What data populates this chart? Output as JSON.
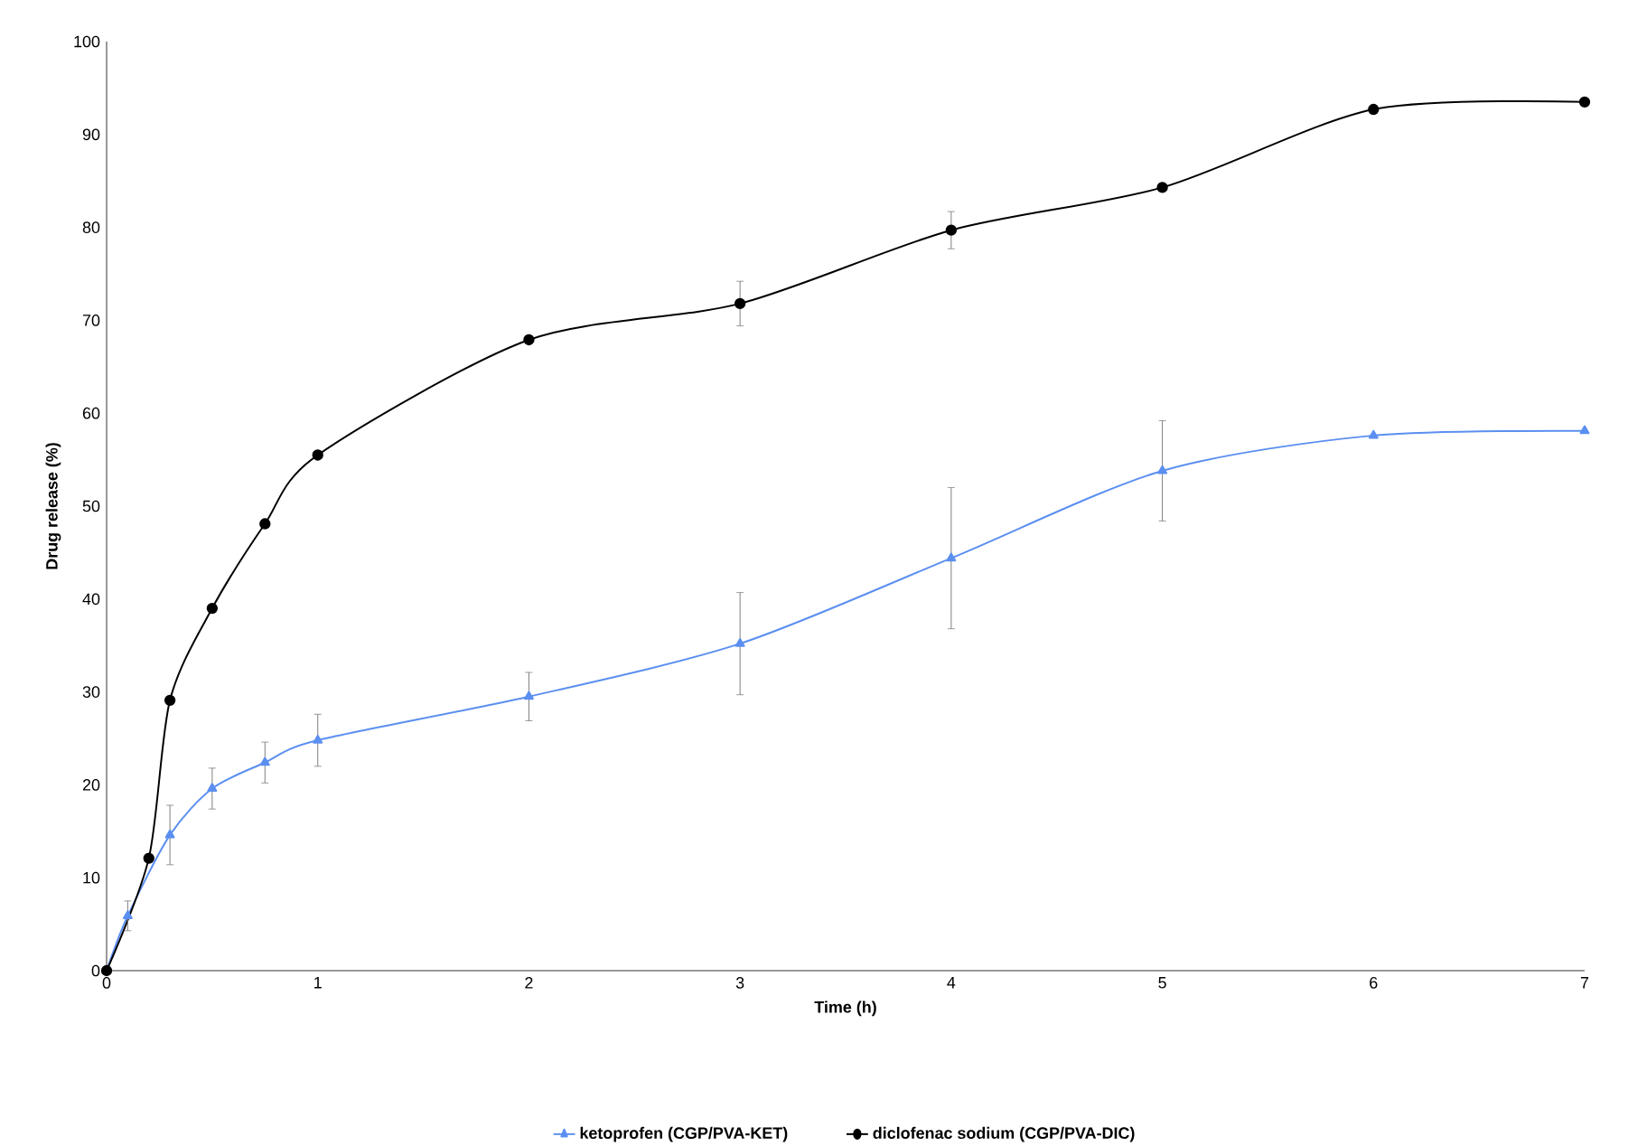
{
  "chart_data": {
    "type": "line",
    "xlabel": "Time (h)",
    "ylabel": "Drug release (%)",
    "xlim": [
      0,
      7
    ],
    "ylim": [
      0,
      100
    ],
    "xticks": [
      0,
      1,
      2,
      3,
      4,
      5,
      6,
      7
    ],
    "yticks": [
      0,
      10,
      20,
      30,
      40,
      50,
      60,
      70,
      80,
      90,
      100
    ],
    "grid": false,
    "legend": "bottom",
    "series": [
      {
        "name": "ketoprofen (CGP/PVA-KET)",
        "color": "#5b8ff0",
        "marker": "triangle",
        "x": [
          0,
          0.1,
          0.3,
          0.5,
          0.75,
          1,
          2,
          3,
          4,
          5,
          6,
          7
        ],
        "values": [
          0,
          5.9,
          14.6,
          19.6,
          22.4,
          24.8,
          29.5,
          35.2,
          44.4,
          53.8,
          57.6,
          58.1
        ],
        "errors": [
          null,
          1.6,
          3.2,
          2.2,
          2.2,
          2.8,
          2.6,
          5.5,
          7.6,
          5.4,
          null,
          null
        ]
      },
      {
        "name": "diclofenac sodium (CGP/PVA-DIC)",
        "color": "#000000",
        "marker": "circle",
        "x": [
          0,
          0.2,
          0.3,
          0.5,
          0.75,
          1,
          2,
          3,
          4,
          5,
          6,
          7
        ],
        "values": [
          0,
          12.1,
          29.1,
          39.0,
          48.1,
          55.5,
          67.9,
          71.8,
          79.7,
          84.3,
          92.7,
          93.5
        ],
        "errors": [
          null,
          null,
          null,
          null,
          null,
          null,
          null,
          2.4,
          2.0,
          null,
          null,
          null
        ]
      }
    ]
  }
}
